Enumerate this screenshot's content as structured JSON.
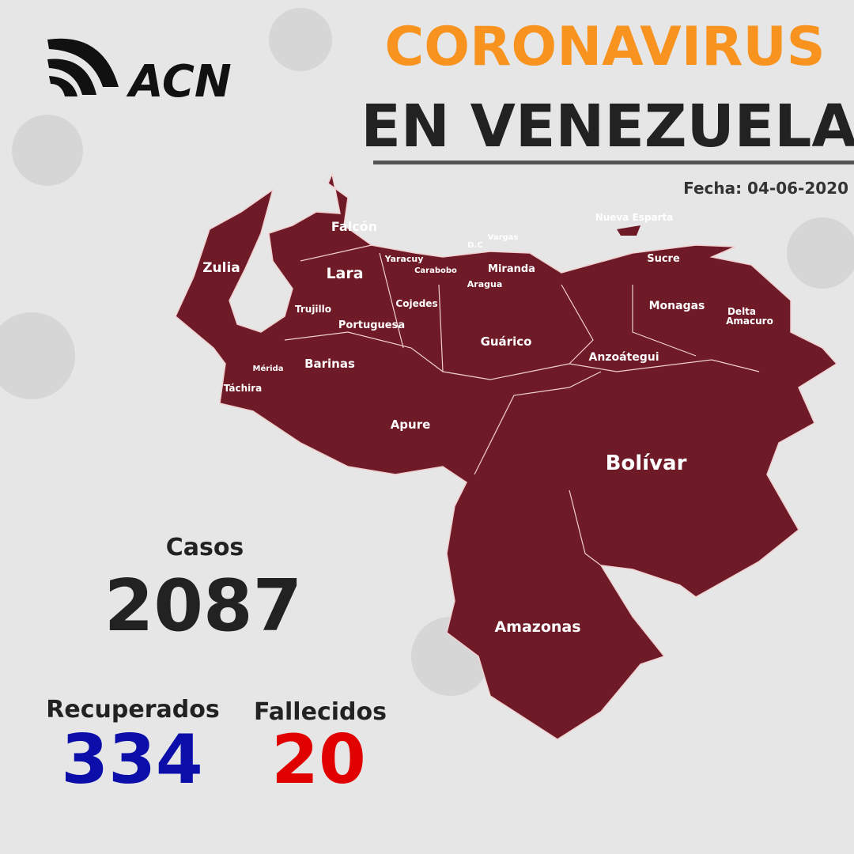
{
  "logo": "ACN",
  "title": {
    "line1": "CORONAVIRUS",
    "line2": "EN VENEZUELA"
  },
  "date": "Fecha: 04-06-2020",
  "states": [
    "Falcón",
    "Zulia",
    "Lara",
    "Yaracuy",
    "Carabobo",
    "Vargas",
    "D.C",
    "Miranda",
    "Aragua",
    "Nueva Esparta",
    "Sucre",
    "Monagas",
    [
      "Delta",
      "Amacuro"
    ],
    "Trujillo",
    "Cojedes",
    "Portuguesa",
    "Guárico",
    "Anzoátegui",
    "Mérida",
    "Barinas",
    "Táchira",
    "Apure",
    "Bolívar",
    "Amazonas"
  ],
  "stats": {
    "cases": {
      "label": "Casos",
      "value": 2087
    },
    "recovered": {
      "label": "Recuperados",
      "value": 334
    },
    "deaths": {
      "label": "Fallecidos",
      "value": 20
    }
  }
}
